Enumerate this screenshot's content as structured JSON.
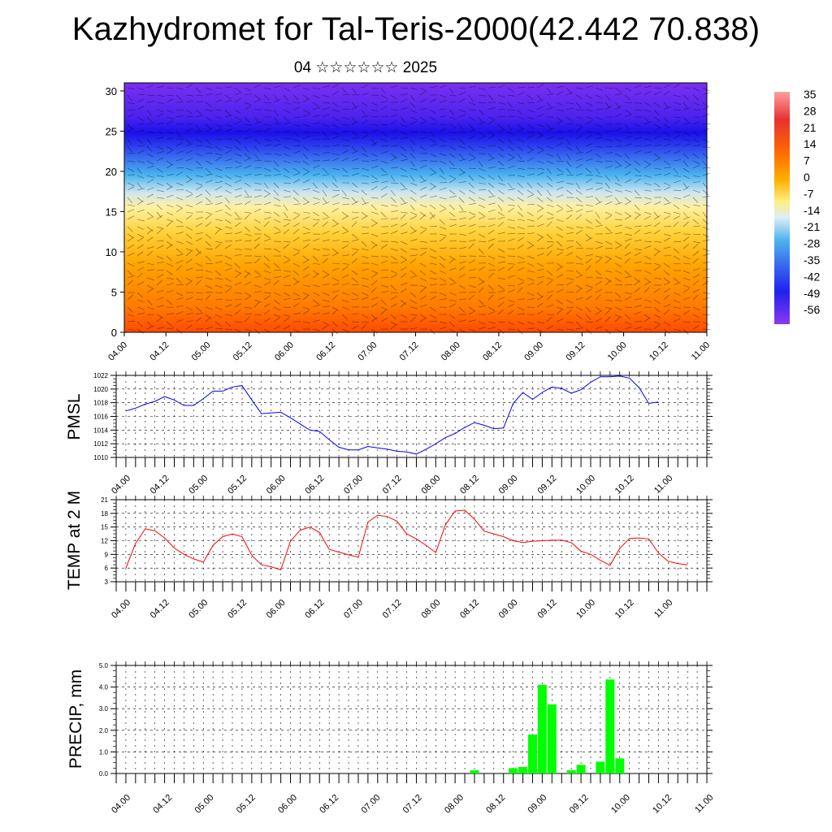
{
  "page": {
    "title": "Kazhydromet for Tal-Teris-2000(42.442 70.838)",
    "subtitle": "04 ☆☆☆☆☆☆ 2025"
  },
  "chart_data": [
    {
      "id": "cross_section",
      "type": "heatmap",
      "yticks": [
        "0",
        "5",
        "10",
        "15",
        "20",
        "25",
        "30"
      ],
      "ylim": [
        0,
        31
      ],
      "xticks": [
        "04.00",
        "04.12",
        "05.00",
        "05.12",
        "06.00",
        "06.12",
        "07.00",
        "07.12",
        "08.00",
        "08.12",
        "09.00",
        "09.12",
        "10.00",
        "10.12",
        "11.00"
      ],
      "colorbar": {
        "labels": [
          "35",
          "28",
          "21",
          "14",
          "7",
          "0",
          "-7",
          "-14",
          "-21",
          "-28",
          "-35",
          "-42",
          "-49",
          "-56"
        ]
      },
      "overlay": "wind barbs"
    },
    {
      "id": "pmsl",
      "type": "line",
      "ylabel": "PMSL",
      "ylim": [
        1010,
        1022
      ],
      "yticks": [
        "1010",
        "1012",
        "1014",
        "1016",
        "1018",
        "1020",
        "1022"
      ],
      "xticks": [
        "04.00",
        "04.12",
        "05.00",
        "05.12",
        "06.00",
        "06.12",
        "07.00",
        "07.12",
        "08.00",
        "08.12",
        "09.00",
        "09.12",
        "10.00",
        "10.12",
        "11.00"
      ],
      "color": "#0000ff",
      "values": [
        1016.8,
        1017.2,
        1017.8,
        1018.2,
        1018.9,
        1018.4,
        1017.6,
        1017.6,
        1018.6,
        1019.7,
        1019.7,
        1020.3,
        1020.5,
        1018.4,
        1016.4,
        1016.5,
        1016.6,
        1015.8,
        1014.9,
        1014.0,
        1013.8,
        1012.6,
        1011.5,
        1011.1,
        1011.1,
        1011.6,
        1011.4,
        1011.2,
        1010.9,
        1010.8,
        1010.5,
        1011.2,
        1012.0,
        1012.9,
        1013.5,
        1014.4,
        1015.1,
        1014.7,
        1014.2,
        1014.3,
        1017.9,
        1019.5,
        1018.5,
        1019.5,
        1020.3,
        1020.1,
        1019.4,
        1019.9,
        1021.0,
        1021.8,
        1021.8,
        1021.9,
        1021.6,
        1020.2,
        1017.9,
        1018.1
      ]
    },
    {
      "id": "temp2m",
      "type": "line",
      "ylabel": "TEMP at 2 M",
      "ylim": [
        3,
        21
      ],
      "yticks": [
        "3",
        "6",
        "9",
        "12",
        "15",
        "18",
        "21"
      ],
      "xticks": [
        "04.00",
        "04.12",
        "05.00",
        "05.12",
        "06.00",
        "06.12",
        "07.00",
        "07.12",
        "08.00",
        "08.12",
        "09.00",
        "09.12",
        "10.00",
        "10.12",
        "11.00"
      ],
      "color": "#ff0000",
      "values": [
        6.0,
        11.4,
        14.6,
        14.2,
        12.6,
        10.4,
        9.0,
        8.0,
        7.3,
        11.0,
        12.9,
        13.5,
        12.9,
        8.8,
        6.7,
        6.3,
        5.6,
        11.9,
        14.3,
        15.0,
        13.8,
        10.1,
        9.5,
        8.9,
        8.4,
        16.1,
        17.6,
        17.3,
        16.3,
        13.5,
        12.4,
        11.0,
        9.4,
        15.5,
        18.5,
        18.7,
        16.7,
        14.1,
        13.5,
        12.9,
        12.0,
        11.6,
        11.9,
        12.0,
        12.1,
        12.1,
        11.6,
        9.7,
        9.0,
        7.7,
        6.6,
        10.3,
        12.5,
        12.6,
        12.4,
        9.3,
        7.5,
        7.0,
        6.7
      ]
    },
    {
      "id": "precip",
      "type": "bar",
      "ylabel": "PRECIP, mm",
      "ylim": [
        0,
        5
      ],
      "yticks": [
        "0.0",
        "1.0",
        "2.0",
        "3.0",
        "4.0",
        "5.0"
      ],
      "xticks": [
        "04.00",
        "04.12",
        "05.00",
        "05.12",
        "06.00",
        "06.12",
        "07.00",
        "07.12",
        "08.00",
        "08.12",
        "09.00",
        "09.12",
        "10.00",
        "10.12",
        "11.00"
      ],
      "color": "#00ff00",
      "bars": [
        {
          "step": 36,
          "value": 0.15
        },
        {
          "step": 40,
          "value": 0.25
        },
        {
          "step": 41,
          "value": 0.3
        },
        {
          "step": 42,
          "value": 1.8
        },
        {
          "step": 43,
          "value": 4.1
        },
        {
          "step": 44,
          "value": 3.2
        },
        {
          "step": 46,
          "value": 0.15
        },
        {
          "step": 47,
          "value": 0.4
        },
        {
          "step": 49,
          "value": 0.55
        },
        {
          "step": 50,
          "value": 4.35
        },
        {
          "step": 51,
          "value": 0.7
        }
      ]
    }
  ]
}
